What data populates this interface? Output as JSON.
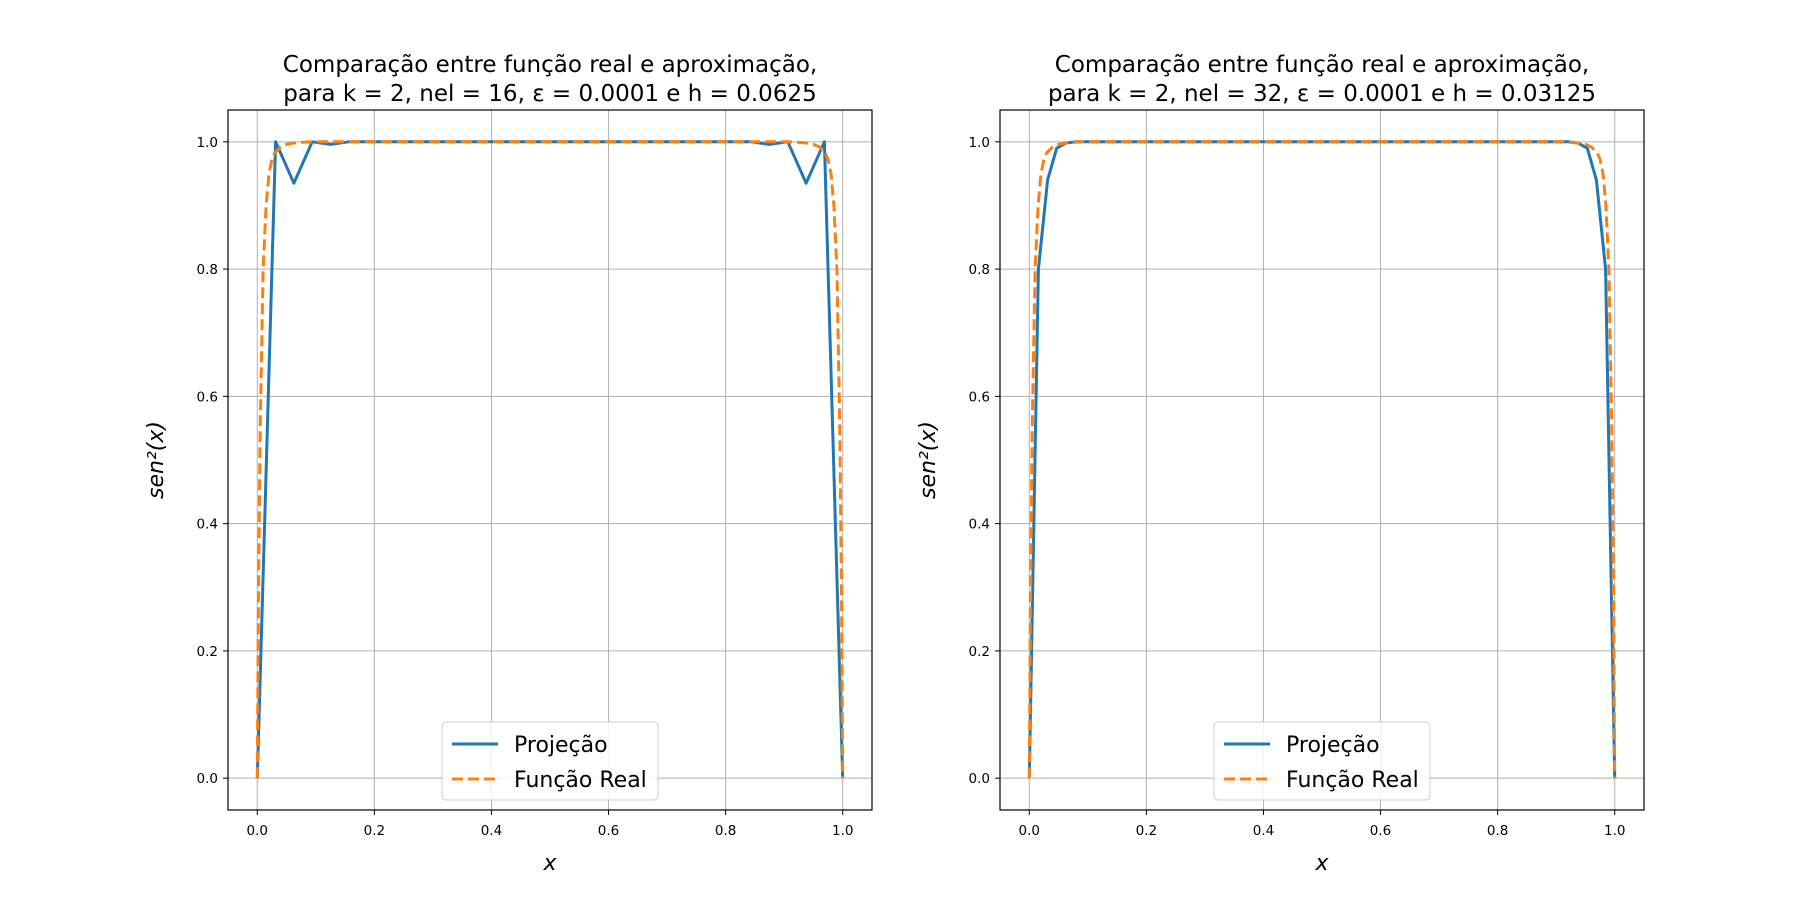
{
  "chart_data": [
    {
      "type": "line",
      "title_line1": "Comparação entre função real e aproximação,",
      "title_line2": "para k = 2, nel = 16, ε = 0.0001 e h = 0.0625",
      "xlabel": "x",
      "ylabel": "sen²(x)",
      "xlim": [
        -0.05,
        1.05
      ],
      "ylim": [
        -0.05,
        1.05
      ],
      "xticks": [
        "0.0",
        "0.2",
        "0.4",
        "0.6",
        "0.8",
        "1.0"
      ],
      "yticks": [
        "0.0",
        "0.2",
        "0.4",
        "0.6",
        "0.8",
        "1.0"
      ],
      "grid": true,
      "legend_position": "lower-center",
      "series": [
        {
          "name": "Projeção",
          "color": "#1f77b4",
          "style": "solid",
          "x": [
            0.0,
            0.03125,
            0.0625,
            0.09375,
            0.125,
            0.15625,
            0.1875,
            0.25,
            0.3125,
            0.375,
            0.4375,
            0.5,
            0.5625,
            0.625,
            0.6875,
            0.75,
            0.8125,
            0.84375,
            0.875,
            0.90625,
            0.9375,
            0.96875,
            1.0
          ],
          "y": [
            0.0,
            1.0,
            0.935,
            1.0,
            0.996,
            1.0,
            1.0,
            1.0,
            1.0,
            1.0,
            1.0,
            1.0,
            1.0,
            1.0,
            1.0,
            1.0,
            1.0,
            1.0,
            0.996,
            1.0,
            0.935,
            1.0,
            0.0
          ]
        },
        {
          "name": "Função Real",
          "color": "#ff7f0e",
          "style": "dashed",
          "x": [
            0.0,
            0.002,
            0.005,
            0.01,
            0.015,
            0.02,
            0.025,
            0.03,
            0.04,
            0.05,
            0.06,
            0.08,
            0.1,
            0.15,
            0.5,
            0.85,
            0.9,
            0.92,
            0.94,
            0.95,
            0.96,
            0.97,
            0.975,
            0.98,
            0.985,
            0.99,
            0.995,
            0.998,
            1.0
          ],
          "y": [
            0.0,
            0.27,
            0.55,
            0.8,
            0.9,
            0.95,
            0.972,
            0.983,
            0.992,
            0.996,
            0.998,
            0.9995,
            1.0,
            1.0,
            1.0,
            1.0,
            1.0,
            0.9995,
            0.998,
            0.996,
            0.992,
            0.983,
            0.972,
            0.95,
            0.9,
            0.8,
            0.55,
            0.27,
            0.0
          ]
        }
      ]
    },
    {
      "type": "line",
      "title_line1": "Comparação entre função real e aproximação,",
      "title_line2": "para k = 2, nel = 32, ε = 0.0001 e h = 0.03125",
      "xlabel": "x",
      "ylabel": "sen²(x)",
      "xlim": [
        -0.05,
        1.05
      ],
      "ylim": [
        -0.05,
        1.05
      ],
      "xticks": [
        "0.0",
        "0.2",
        "0.4",
        "0.6",
        "0.8",
        "1.0"
      ],
      "yticks": [
        "0.0",
        "0.2",
        "0.4",
        "0.6",
        "0.8",
        "1.0"
      ],
      "grid": true,
      "legend_position": "lower-center",
      "series": [
        {
          "name": "Projeção",
          "color": "#1f77b4",
          "style": "solid",
          "x": [
            0.0,
            0.015625,
            0.03125,
            0.046875,
            0.0625,
            0.078125,
            0.09375,
            0.125,
            0.25,
            0.5,
            0.75,
            0.875,
            0.90625,
            0.921875,
            0.9375,
            0.953125,
            0.96875,
            0.984375,
            1.0
          ],
          "y": [
            0.0,
            0.8,
            0.94,
            0.99,
            0.998,
            1.0,
            1.0,
            1.0,
            1.0,
            1.0,
            1.0,
            1.0,
            1.0,
            1.0,
            0.998,
            0.99,
            0.94,
            0.8,
            0.0
          ]
        },
        {
          "name": "Função Real",
          "color": "#ff7f0e",
          "style": "dashed",
          "x": [
            0.0,
            0.002,
            0.005,
            0.01,
            0.015,
            0.02,
            0.025,
            0.03,
            0.04,
            0.05,
            0.06,
            0.08,
            0.1,
            0.15,
            0.5,
            0.85,
            0.9,
            0.92,
            0.94,
            0.95,
            0.96,
            0.97,
            0.975,
            0.98,
            0.985,
            0.99,
            0.995,
            0.998,
            1.0
          ],
          "y": [
            0.0,
            0.27,
            0.55,
            0.8,
            0.9,
            0.95,
            0.972,
            0.983,
            0.992,
            0.996,
            0.998,
            0.9995,
            1.0,
            1.0,
            1.0,
            1.0,
            1.0,
            0.9995,
            0.998,
            0.996,
            0.992,
            0.983,
            0.972,
            0.95,
            0.9,
            0.8,
            0.55,
            0.27,
            0.0
          ]
        }
      ]
    }
  ]
}
